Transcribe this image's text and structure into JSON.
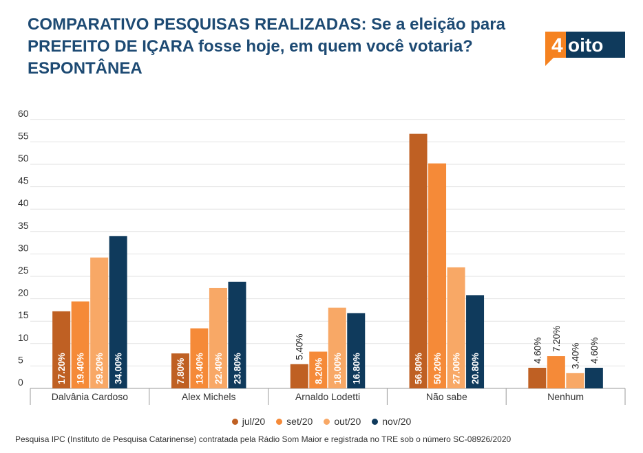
{
  "header": {
    "title": "COMPARATIVO PESQUISAS REALIZADAS: Se a eleição para PREFEITO DE IÇARA fosse hoje, em quem você votaria? ESPONTÂNEA",
    "logo_text": "4oito",
    "logo_colors": {
      "orange": "#f58220",
      "navy": "#0f3a5c"
    }
  },
  "footnote": "Pesquisa IPC (Instituto de Pesquisa Catarinense) contratada pela Rádio Som Maior e registrada no TRE sob o número SC-08926/2020",
  "chart_data": {
    "type": "bar",
    "title": "",
    "xlabel": "",
    "ylabel": "",
    "ylim": [
      0,
      60
    ],
    "yticks": [
      0,
      5,
      10,
      15,
      20,
      25,
      30,
      35,
      40,
      45,
      50,
      55,
      60
    ],
    "grid": true,
    "legend_position": "bottom",
    "categories": [
      "Dalvânia Cardoso",
      "Alex Michels",
      "Arnaldo Lodetti",
      "Não sabe",
      "Nenhum"
    ],
    "series": [
      {
        "name": "jul/20",
        "color": "#bf6023",
        "values": [
          17.2,
          7.8,
          5.4,
          56.8,
          4.6
        ],
        "labels": [
          "17.20%",
          "7.80%",
          "5.40%",
          "56.80%",
          "4.60%"
        ]
      },
      {
        "name": "set/20",
        "color": "#f58a38",
        "values": [
          19.4,
          13.4,
          8.2,
          50.2,
          7.2
        ],
        "labels": [
          "19.40%",
          "13.40%",
          "8.20%",
          "50.20%",
          "7.20%"
        ]
      },
      {
        "name": "out/20",
        "color": "#f8a866",
        "values": [
          29.2,
          22.4,
          18.0,
          27.0,
          3.4
        ],
        "labels": [
          "29.20%",
          "22.40%",
          "18.00%",
          "27.00%",
          "3.40%"
        ]
      },
      {
        "name": "nov/20",
        "color": "#0f3a5c",
        "values": [
          34.0,
          23.8,
          16.8,
          20.8,
          4.6
        ],
        "labels": [
          "34.00%",
          "23.80%",
          "16.80%",
          "20.80%",
          "4.60%"
        ]
      }
    ]
  }
}
